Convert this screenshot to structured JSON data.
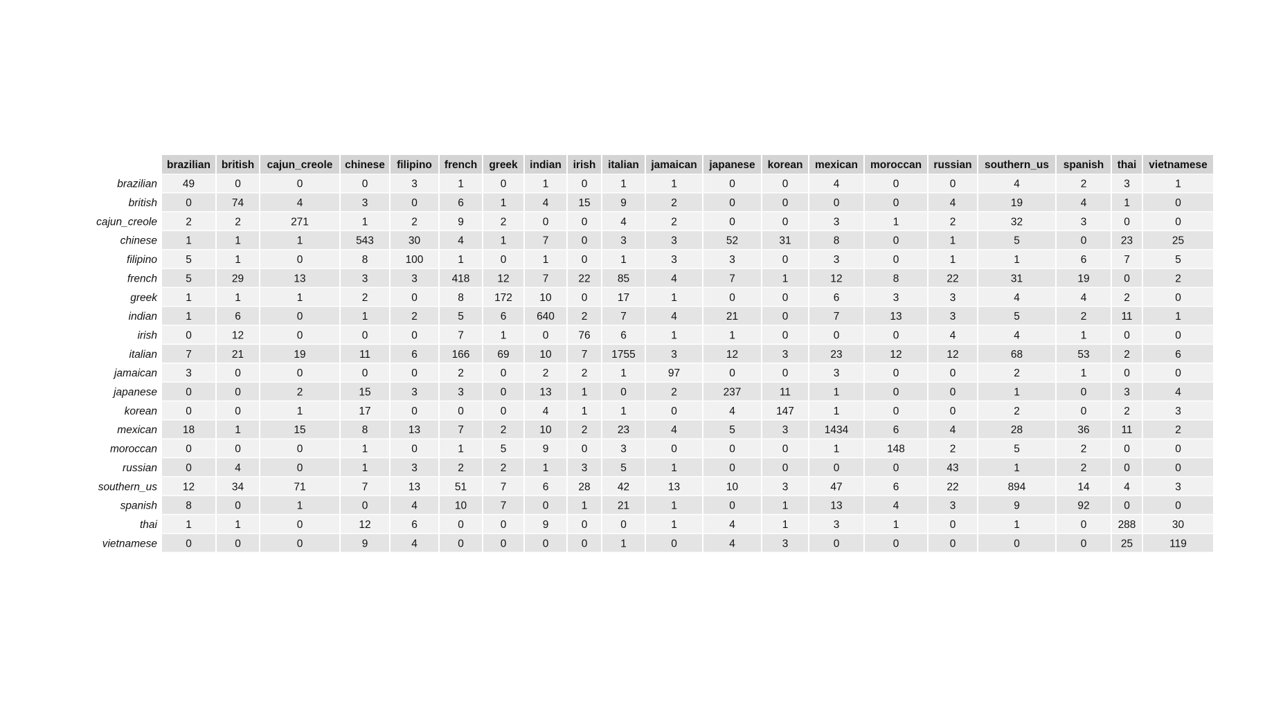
{
  "colors": {
    "header_bg": "#d4d4d4",
    "row_light": "#f1f1f1",
    "row_dark": "#e4e4e4",
    "grid_line": "#ffffff",
    "text": "#111111"
  },
  "chart_data": {
    "type": "table",
    "title": "",
    "xlabel": "",
    "ylabel": "",
    "columns": [
      "brazilian",
      "british",
      "cajun_creole",
      "chinese",
      "filipino",
      "french",
      "greek",
      "indian",
      "irish",
      "italian",
      "jamaican",
      "japanese",
      "korean",
      "mexican",
      "moroccan",
      "russian",
      "southern_us",
      "spanish",
      "thai",
      "vietnamese"
    ],
    "rows": [
      "brazilian",
      "british",
      "cajun_creole",
      "chinese",
      "filipino",
      "french",
      "greek",
      "indian",
      "irish",
      "italian",
      "jamaican",
      "japanese",
      "korean",
      "mexican",
      "moroccan",
      "russian",
      "southern_us",
      "spanish",
      "thai",
      "vietnamese"
    ],
    "values": [
      [
        49,
        0,
        0,
        0,
        3,
        1,
        0,
        1,
        0,
        1,
        1,
        0,
        0,
        4,
        0,
        0,
        4,
        2,
        3,
        1
      ],
      [
        0,
        74,
        4,
        3,
        0,
        6,
        1,
        4,
        15,
        9,
        2,
        0,
        0,
        0,
        0,
        4,
        19,
        4,
        1,
        0
      ],
      [
        2,
        2,
        271,
        1,
        2,
        9,
        2,
        0,
        0,
        4,
        2,
        0,
        0,
        3,
        1,
        2,
        32,
        3,
        0,
        0
      ],
      [
        1,
        1,
        1,
        543,
        30,
        4,
        1,
        7,
        0,
        3,
        3,
        52,
        31,
        8,
        0,
        1,
        5,
        0,
        23,
        25
      ],
      [
        5,
        1,
        0,
        8,
        100,
        1,
        0,
        1,
        0,
        1,
        3,
        3,
        0,
        3,
        0,
        1,
        1,
        6,
        7,
        5
      ],
      [
        5,
        29,
        13,
        3,
        3,
        418,
        12,
        7,
        22,
        85,
        4,
        7,
        1,
        12,
        8,
        22,
        31,
        19,
        0,
        2
      ],
      [
        1,
        1,
        1,
        2,
        0,
        8,
        172,
        10,
        0,
        17,
        1,
        0,
        0,
        6,
        3,
        3,
        4,
        4,
        2,
        0
      ],
      [
        1,
        6,
        0,
        1,
        2,
        5,
        6,
        640,
        2,
        7,
        4,
        21,
        0,
        7,
        13,
        3,
        5,
        2,
        11,
        1
      ],
      [
        0,
        12,
        0,
        0,
        0,
        7,
        1,
        0,
        76,
        6,
        1,
        1,
        0,
        0,
        0,
        4,
        4,
        1,
        0,
        0
      ],
      [
        7,
        21,
        19,
        11,
        6,
        166,
        69,
        10,
        7,
        1755,
        3,
        12,
        3,
        23,
        12,
        12,
        68,
        53,
        2,
        6
      ],
      [
        3,
        0,
        0,
        0,
        0,
        2,
        0,
        2,
        2,
        1,
        97,
        0,
        0,
        3,
        0,
        0,
        2,
        1,
        0,
        0
      ],
      [
        0,
        0,
        2,
        15,
        3,
        3,
        0,
        13,
        1,
        0,
        2,
        237,
        11,
        1,
        0,
        0,
        1,
        0,
        3,
        4
      ],
      [
        0,
        0,
        1,
        17,
        0,
        0,
        0,
        4,
        1,
        1,
        0,
        4,
        147,
        1,
        0,
        0,
        2,
        0,
        2,
        3
      ],
      [
        18,
        1,
        15,
        8,
        13,
        7,
        2,
        10,
        2,
        23,
        4,
        5,
        3,
        1434,
        6,
        4,
        28,
        36,
        11,
        2
      ],
      [
        0,
        0,
        0,
        1,
        0,
        1,
        5,
        9,
        0,
        3,
        0,
        0,
        0,
        1,
        148,
        2,
        5,
        2,
        0,
        0
      ],
      [
        0,
        4,
        0,
        1,
        3,
        2,
        2,
        1,
        3,
        5,
        1,
        0,
        0,
        0,
        0,
        43,
        1,
        2,
        0,
        0
      ],
      [
        12,
        34,
        71,
        7,
        13,
        51,
        7,
        6,
        28,
        42,
        13,
        10,
        3,
        47,
        6,
        22,
        894,
        14,
        4,
        3
      ],
      [
        8,
        0,
        1,
        0,
        4,
        10,
        7,
        0,
        1,
        21,
        1,
        0,
        1,
        13,
        4,
        3,
        9,
        92,
        0,
        0
      ],
      [
        1,
        1,
        0,
        12,
        6,
        0,
        0,
        9,
        0,
        0,
        1,
        4,
        1,
        3,
        1,
        0,
        1,
        0,
        288,
        30
      ],
      [
        0,
        0,
        0,
        9,
        4,
        0,
        0,
        0,
        0,
        1,
        0,
        4,
        3,
        0,
        0,
        0,
        0,
        0,
        25,
        119
      ]
    ]
  }
}
